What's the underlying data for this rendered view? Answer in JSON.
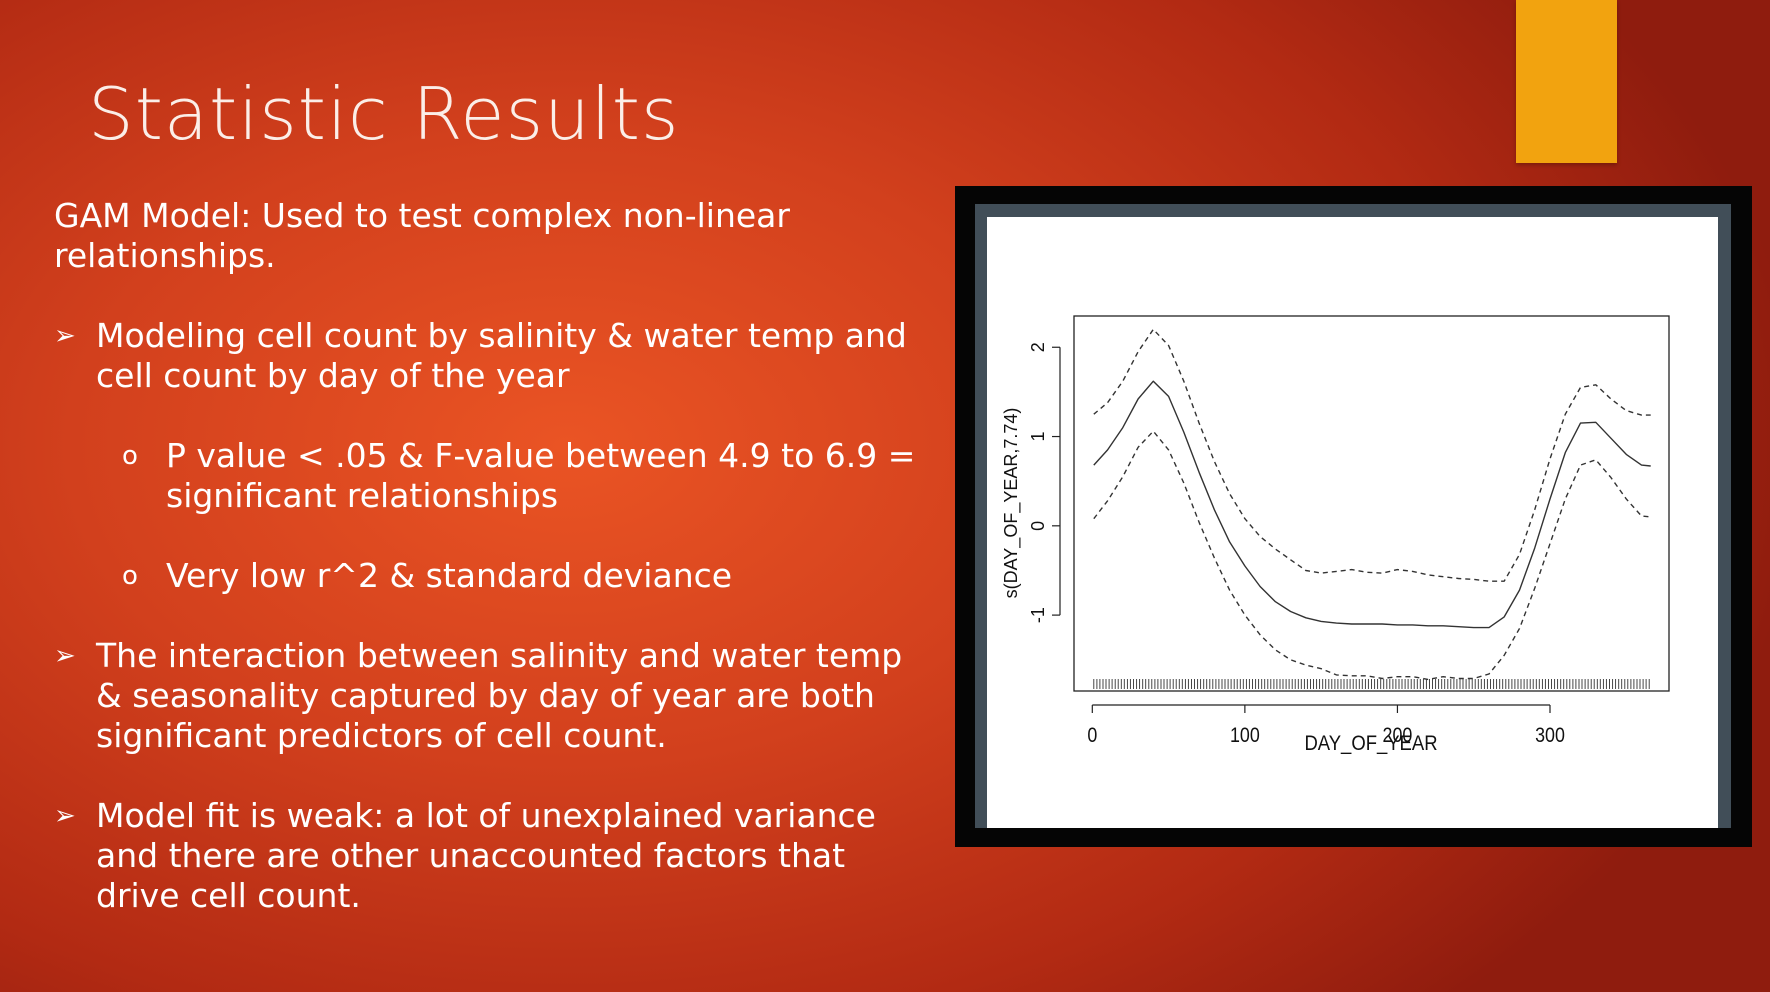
{
  "slide": {
    "title": "Statistic Results",
    "accent_color": "#f2a30f",
    "intro": "GAM Model: Used to test complex non-linear relationships.",
    "bullets": [
      {
        "marker": "➢",
        "text": "Modeling cell count by salinity & water temp and cell count by day of the year",
        "sub": [
          {
            "marker": "o",
            "text": "P value < .05 & F-value between 4.9 to 6.9 = significant relationships"
          },
          {
            "marker": "o",
            "text": "Very low r^2 & standard deviance"
          }
        ]
      },
      {
        "marker": "➢",
        "text": "The interaction between salinity and water temp & seasonality captured by day of year are both significant predictors of cell count."
      },
      {
        "marker": "➢",
        "text": "Model fit is weak: a lot of unexplained variance and there are other unaccounted factors that drive cell count."
      }
    ]
  },
  "chart_data": {
    "type": "line",
    "xlabel": "DAY_OF_YEAR",
    "ylabel": "s(DAY_OF_YEAR,7.74)",
    "xlim": [
      -12,
      378
    ],
    "ylim": [
      -1.85,
      2.35
    ],
    "xticks": [
      0,
      100,
      200,
      300
    ],
    "yticks": [
      -1,
      0,
      1,
      2
    ],
    "grid": false,
    "x": [
      1,
      10,
      20,
      30,
      40,
      50,
      60,
      70,
      80,
      90,
      100,
      110,
      120,
      130,
      140,
      150,
      160,
      170,
      180,
      190,
      200,
      210,
      220,
      230,
      240,
      250,
      260,
      270,
      280,
      290,
      300,
      310,
      320,
      330,
      340,
      350,
      360,
      366
    ],
    "series": [
      {
        "style": "solid",
        "values": [
          0.68,
          0.85,
          1.1,
          1.42,
          1.62,
          1.45,
          1.05,
          0.6,
          0.18,
          -0.18,
          -0.45,
          -0.68,
          -0.85,
          -0.96,
          -1.03,
          -1.07,
          -1.09,
          -1.1,
          -1.1,
          -1.1,
          -1.11,
          -1.11,
          -1.12,
          -1.12,
          -1.13,
          -1.14,
          -1.14,
          -1.02,
          -0.72,
          -0.25,
          0.3,
          0.82,
          1.15,
          1.16,
          0.98,
          0.8,
          0.68,
          0.67
        ]
      },
      {
        "style": "dashed",
        "values": [
          1.25,
          1.38,
          1.62,
          1.95,
          2.2,
          2.02,
          1.62,
          1.15,
          0.72,
          0.36,
          0.08,
          -0.12,
          -0.26,
          -0.38,
          -0.5,
          -0.53,
          -0.51,
          -0.49,
          -0.52,
          -0.53,
          -0.49,
          -0.51,
          -0.55,
          -0.57,
          -0.59,
          -0.6,
          -0.62,
          -0.62,
          -0.32,
          0.18,
          0.75,
          1.25,
          1.55,
          1.58,
          1.42,
          1.29,
          1.24,
          1.24
        ]
      },
      {
        "style": "dashed",
        "values": [
          0.08,
          0.28,
          0.55,
          0.88,
          1.06,
          0.85,
          0.48,
          0.04,
          -0.36,
          -0.72,
          -1.0,
          -1.22,
          -1.39,
          -1.5,
          -1.56,
          -1.6,
          -1.67,
          -1.68,
          -1.68,
          -1.71,
          -1.69,
          -1.69,
          -1.72,
          -1.69,
          -1.71,
          -1.71,
          -1.66,
          -1.45,
          -1.15,
          -0.7,
          -0.2,
          0.3,
          0.68,
          0.74,
          0.54,
          0.3,
          0.11,
          0.1
        ]
      }
    ]
  }
}
